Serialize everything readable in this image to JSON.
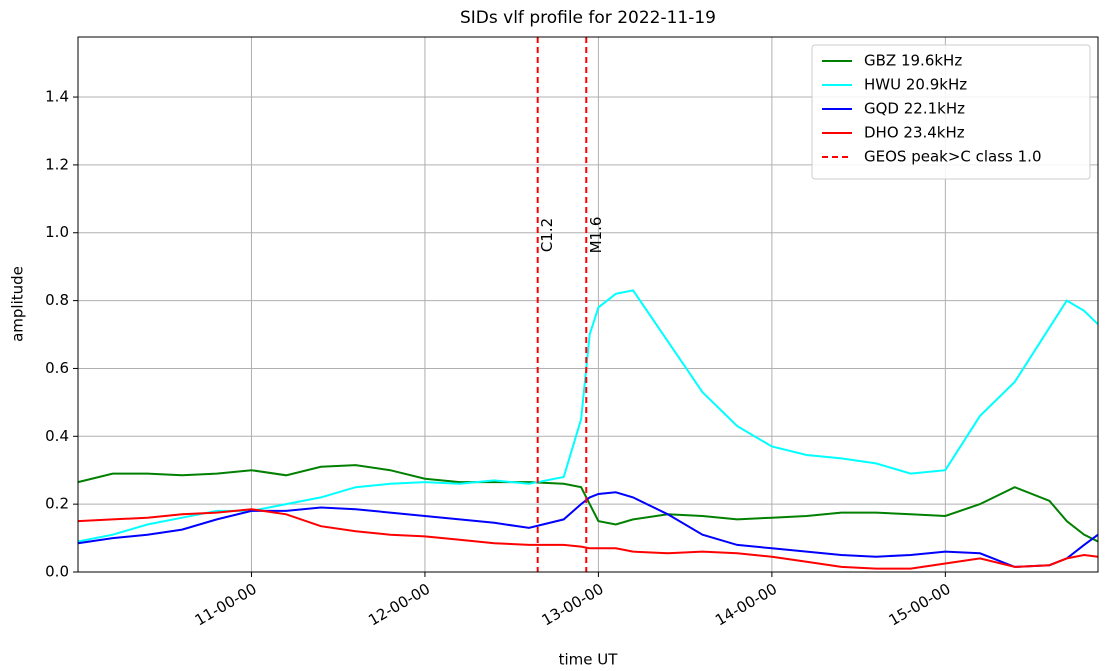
{
  "chart_data": {
    "type": "line",
    "title": "SIDs vlf profile for 2022-11-19",
    "xlabel": "time UT",
    "ylabel": "amplitude",
    "x": [
      10.0,
      10.2,
      10.4,
      10.6,
      10.8,
      11.0,
      11.2,
      11.4,
      11.6,
      11.8,
      12.0,
      12.2,
      12.4,
      12.6,
      12.8,
      12.9,
      12.95,
      13.0,
      13.1,
      13.2,
      13.4,
      13.6,
      13.8,
      14.0,
      14.2,
      14.4,
      14.6,
      14.8,
      15.0,
      15.2,
      15.4,
      15.6,
      15.7,
      15.8,
      15.88
    ],
    "series": [
      {
        "name": "GBZ 19.6kHz",
        "color": "#008000",
        "values": [
          0.265,
          0.29,
          0.29,
          0.285,
          0.29,
          0.3,
          0.285,
          0.31,
          0.315,
          0.3,
          0.275,
          0.265,
          0.265,
          0.265,
          0.26,
          0.25,
          0.2,
          0.15,
          0.14,
          0.155,
          0.17,
          0.165,
          0.155,
          0.16,
          0.165,
          0.175,
          0.175,
          0.17,
          0.165,
          0.2,
          0.25,
          0.21,
          0.15,
          0.11,
          0.09
        ]
      },
      {
        "name": "HWU 20.9kHz",
        "color": "#00ffff",
        "values": [
          0.09,
          0.11,
          0.14,
          0.16,
          0.18,
          0.18,
          0.2,
          0.22,
          0.25,
          0.26,
          0.265,
          0.26,
          0.27,
          0.26,
          0.28,
          0.45,
          0.7,
          0.78,
          0.82,
          0.83,
          0.68,
          0.53,
          0.43,
          0.37,
          0.345,
          0.335,
          0.32,
          0.29,
          0.3,
          0.46,
          0.56,
          0.72,
          0.8,
          0.77,
          0.73
        ]
      },
      {
        "name": "GQD 22.1kHz",
        "color": "#0000ff",
        "values": [
          0.085,
          0.1,
          0.11,
          0.125,
          0.155,
          0.18,
          0.18,
          0.19,
          0.185,
          0.175,
          0.165,
          0.155,
          0.145,
          0.13,
          0.155,
          0.2,
          0.22,
          0.23,
          0.235,
          0.22,
          0.17,
          0.11,
          0.08,
          0.07,
          0.06,
          0.05,
          0.045,
          0.05,
          0.06,
          0.055,
          0.015,
          0.02,
          0.04,
          0.08,
          0.11
        ]
      },
      {
        "name": "DHO 23.4kHz",
        "color": "#ff0000",
        "values": [
          0.15,
          0.155,
          0.16,
          0.17,
          0.175,
          0.185,
          0.17,
          0.135,
          0.12,
          0.11,
          0.105,
          0.095,
          0.085,
          0.08,
          0.08,
          0.075,
          0.07,
          0.07,
          0.07,
          0.06,
          0.055,
          0.06,
          0.055,
          0.045,
          0.03,
          0.015,
          0.01,
          0.01,
          0.025,
          0.04,
          0.015,
          0.02,
          0.04,
          0.05,
          0.045
        ]
      }
    ],
    "flares": {
      "name": "GEOS peak>C class 1.0",
      "color": "#ff0000",
      "x": [
        12.65,
        12.93
      ],
      "labels": [
        "C1.2",
        "M1.6"
      ]
    },
    "xlim": [
      10.0,
      15.88
    ],
    "xticks": [
      {
        "value": 11,
        "label": "11-00-00"
      },
      {
        "value": 12,
        "label": "12-00-00"
      },
      {
        "value": 13,
        "label": "13-00-00"
      },
      {
        "value": 14,
        "label": "14-00-00"
      },
      {
        "value": 15,
        "label": "15-00-00"
      }
    ],
    "ylim": [
      0,
      1.577
    ],
    "yticks": [
      {
        "value": 0,
        "label": "0.0"
      },
      0.2,
      0.4,
      0.6,
      0.8,
      {
        "value": 1,
        "label": "1.0"
      },
      1.2,
      1.4
    ],
    "grid": true,
    "legend": "upper right"
  }
}
